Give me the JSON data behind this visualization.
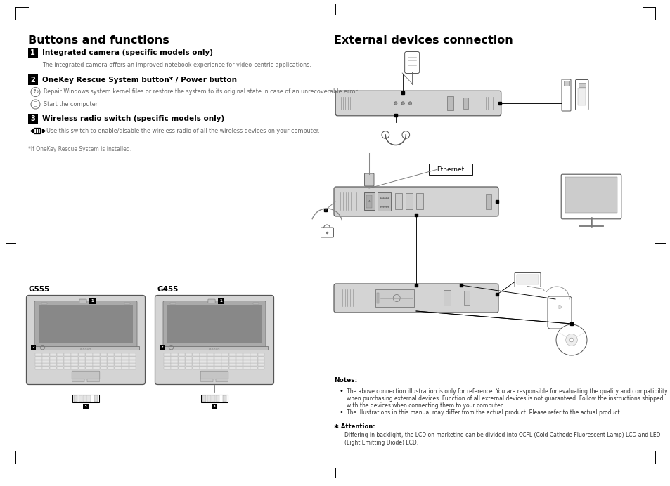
{
  "bg_color": "#ffffff",
  "page_width": 9.54,
  "page_height": 6.92,
  "left_section_title": "Buttons and functions",
  "item1_heading": "Integrated camera (specific models only)",
  "item1_body": "The integrated camera offers an improved notebook experience for video-centric applications.",
  "item2_heading": "OneKey Rescue System button* / Power button",
  "item2_sub1": "Repair Windows system kernel files or restore the system to its original state in case of an unrecoverable error.",
  "item2_sub2": "Start the computer.",
  "item3_heading": "Wireless radio switch (specific models only)",
  "item3_body": "Use this switch to enable/disable the wireless radio of all the wireless devices on your computer.",
  "footnote": "*If OneKey Rescue System is installed.",
  "right_section_title": "External devices connection",
  "ethernet_label": "Ethernet",
  "notes_title": "Notes:",
  "note1": "The above connection illustration is only for reference. You are responsible for evaluating the quality and compatibility when purchasing external devices. Function of all external devices is not guaranteed. Follow the instructions shipped with the devices when connecting them to your computer.",
  "note2": "The illustrations in this manual may differ from the actual product. Please refer to the actual product.",
  "attention_title": "Attention:",
  "attention_text": "Differing in backlight, the LCD on marketing can be divided into CCFL (Cold Cathode Fluorescent Lamp) LCD and LED (Light Emitting Diode) LCD.",
  "label_g555": "G555",
  "label_g455": "G455"
}
